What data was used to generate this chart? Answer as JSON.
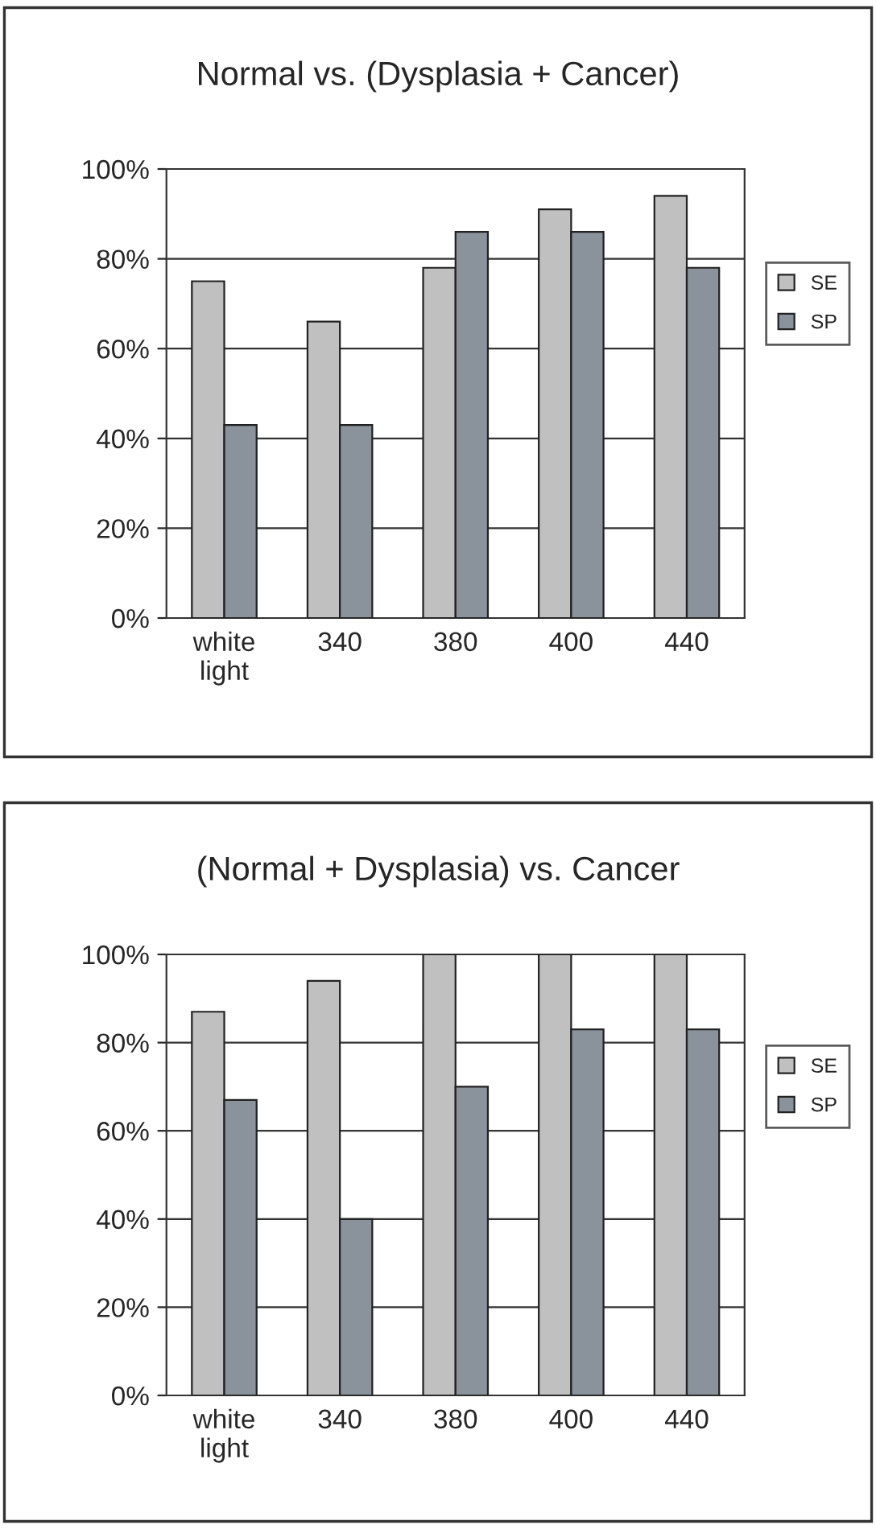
{
  "chart_data": [
    {
      "type": "bar",
      "title": "Normal vs. (Dysplasia + Cancer)",
      "categories": [
        "white\nlight",
        "340",
        "380",
        "400",
        "440"
      ],
      "series": [
        {
          "name": "SE",
          "color": "#c0c0c0",
          "values": [
            75,
            66,
            78,
            91,
            94
          ]
        },
        {
          "name": "SP",
          "color": "#8a929c",
          "values": [
            43,
            43,
            86,
            86,
            78
          ]
        }
      ],
      "ylim": [
        0,
        100
      ],
      "yticks": [
        {
          "value": 0,
          "label": "0%"
        },
        {
          "value": 20,
          "label": "20%"
        },
        {
          "value": 40,
          "label": "40%"
        },
        {
          "value": 60,
          "label": "60%"
        },
        {
          "value": 80,
          "label": "80%"
        },
        {
          "value": 100,
          "label": "100%"
        }
      ],
      "grid": "y",
      "legend": "right"
    },
    {
      "type": "bar",
      "title": "(Normal + Dysplasia) vs. Cancer",
      "categories": [
        "white\nlight",
        "340",
        "380",
        "400",
        "440"
      ],
      "series": [
        {
          "name": "SE",
          "color": "#c0c0c0",
          "values": [
            87,
            94,
            100,
            100,
            100
          ]
        },
        {
          "name": "SP",
          "color": "#8a929c",
          "values": [
            67,
            40,
            70,
            83,
            83
          ]
        }
      ],
      "ylim": [
        0,
        100
      ],
      "yticks": [
        {
          "value": 0,
          "label": "0%"
        },
        {
          "value": 20,
          "label": "20%"
        },
        {
          "value": 40,
          "label": "40%"
        },
        {
          "value": 60,
          "label": "60%"
        },
        {
          "value": 80,
          "label": "80%"
        },
        {
          "value": 100,
          "label": "100%"
        }
      ],
      "grid": "y",
      "legend": "right"
    }
  ]
}
